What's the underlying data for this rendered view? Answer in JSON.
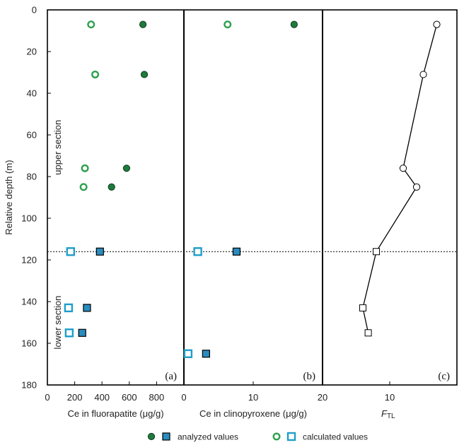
{
  "chart_data": {
    "type": "scatter",
    "ylabel": "Relative depth (m)",
    "ylim": [
      0,
      180
    ],
    "y_reversed": true,
    "y_ticks": [
      0,
      20,
      40,
      60,
      80,
      100,
      120,
      140,
      160,
      180
    ],
    "boundary_depth": 116,
    "section_labels": {
      "upper": "upper section",
      "lower": "lower section"
    },
    "colors": {
      "green_fill": "#1f7a3c",
      "green_ring": "#2ea04e",
      "blue_fill": "#2b8cbf",
      "blue_ring": "#1f9ec9",
      "line": "#000000"
    },
    "panels": [
      {
        "tag": "(a)",
        "xlabel": "Ce in fluorapatite (μg/g)",
        "xlim": [
          0,
          1000
        ],
        "x_ticks": [
          0,
          200,
          400,
          600,
          800
        ],
        "x_tick_labels": [
          "0",
          "200",
          "400",
          "600",
          "800"
        ],
        "series": [
          {
            "name": "analyzed values",
            "marker": "filled-circle",
            "points": [
              [
                700,
                7
              ],
              [
                710,
                31
              ],
              [
                580,
                76
              ],
              [
                470,
                85
              ]
            ]
          },
          {
            "name": "calculated values",
            "marker": "open-circle",
            "points": [
              [
                320,
                7
              ],
              [
                350,
                31
              ],
              [
                275,
                76
              ],
              [
                265,
                85
              ]
            ]
          },
          {
            "name": "analyzed values",
            "marker": "filled-square",
            "points": [
              [
                385,
                116
              ],
              [
                290,
                143
              ],
              [
                255,
                155
              ]
            ]
          },
          {
            "name": "calculated values",
            "marker": "open-square",
            "points": [
              [
                170,
                116
              ],
              [
                155,
                143
              ],
              [
                160,
                155
              ]
            ]
          }
        ]
      },
      {
        "tag": "(b)",
        "xlabel": "Ce in clinopyroxene (μg/g)",
        "xlim": [
          0,
          20
        ],
        "x_ticks": [
          0,
          10,
          20
        ],
        "x_tick_labels": [
          "0",
          "10",
          "20"
        ],
        "series": [
          {
            "name": "analyzed values",
            "marker": "filled-circle",
            "points": [
              [
                15.9,
                7
              ]
            ]
          },
          {
            "name": "calculated values",
            "marker": "open-circle",
            "points": [
              [
                6.3,
                7
              ]
            ]
          },
          {
            "name": "analyzed values",
            "marker": "filled-square",
            "points": [
              [
                7.6,
                116
              ],
              [
                3.2,
                165
              ]
            ]
          },
          {
            "name": "calculated values",
            "marker": "open-square",
            "points": [
              [
                2.0,
                116
              ],
              [
                0.6,
                165
              ]
            ]
          }
        ]
      },
      {
        "tag": "(c)",
        "xlabel_main": "F",
        "xlabel_sub": "TL",
        "xlim": [
          0,
          20
        ],
        "x_ticks": [
          10
        ],
        "x_tick_labels": [
          "10"
        ],
        "series": [
          {
            "name": "F_TL",
            "marker": "line-open",
            "points": [
              [
                17.0,
                7
              ],
              [
                15.0,
                31
              ],
              [
                12.0,
                76
              ],
              [
                14.0,
                85
              ],
              [
                8.0,
                116
              ],
              [
                6.0,
                143
              ],
              [
                6.8,
                155
              ]
            ],
            "square_from_index": 4
          }
        ]
      }
    ],
    "legend": [
      {
        "label": "analyzed values",
        "markers": [
          "filled-circle",
          "filled-square"
        ]
      },
      {
        "label": "calculated values",
        "markers": [
          "open-circle",
          "open-square"
        ]
      }
    ]
  }
}
